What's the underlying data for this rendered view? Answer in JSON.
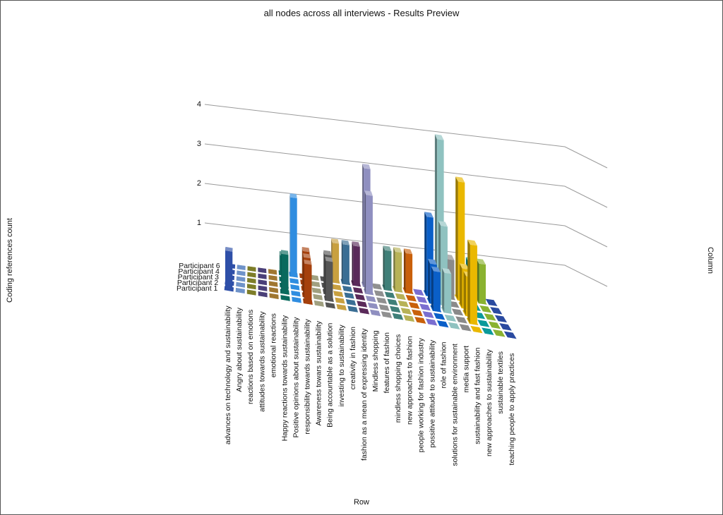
{
  "chart_data": {
    "type": "bar",
    "title": "all nodes across all interviews - Results Preview",
    "ylabel": "Coding references count",
    "xlabel": "Row",
    "zlabel": "Column",
    "ylim": [
      0,
      4
    ],
    "yticks": [
      "1",
      "2",
      "3",
      "4"
    ],
    "series": [
      {
        "name": "Participant 1"
      },
      {
        "name": "Participant 2"
      },
      {
        "name": "Participant 3"
      },
      {
        "name": "Participant 4"
      },
      {
        "name": "Participant 6"
      }
    ],
    "categories": [
      {
        "label": "advances on technology and sustainability",
        "color": "#2e4fa8",
        "values": [
          1,
          0,
          0,
          0,
          0
        ]
      },
      {
        "label": "Angry about sustainability",
        "color": "#6f93c9",
        "values": [
          0,
          0,
          0,
          0,
          0
        ]
      },
      {
        "label": "reactions based on emotions",
        "color": "#7d7d28",
        "values": [
          0,
          0,
          0,
          0,
          0
        ]
      },
      {
        "label": "attitudes towards sustainability",
        "color": "#4a3f78",
        "values": [
          0,
          0,
          0,
          0,
          0
        ]
      },
      {
        "label": "emotional reactions",
        "color": "#a07730",
        "values": [
          0,
          0,
          0,
          0,
          0
        ]
      },
      {
        "label": "Happy reactions towards sustainability",
        "color": "#0a6a5e",
        "values": [
          0,
          1,
          0,
          0,
          0.5
        ]
      },
      {
        "label": "Positive opinions about sustainability",
        "color": "#2f8de0",
        "values": [
          0,
          0,
          0,
          0,
          2
        ]
      },
      {
        "label": "responsibility towards sustainability",
        "color": "#a5400c",
        "values": [
          1,
          1,
          1,
          0,
          0
        ]
      },
      {
        "label": "Awareness towars sustainability",
        "color": "#a0a080",
        "values": [
          0,
          0,
          0,
          0,
          0
        ]
      },
      {
        "label": "Being accountable as a solution",
        "color": "#555555",
        "values": [
          0,
          1,
          1,
          0,
          0
        ]
      },
      {
        "label": "investing to sustainability",
        "color": "#c8a040",
        "values": [
          0,
          0,
          0,
          0,
          1
        ]
      },
      {
        "label": "creativity in fashion",
        "color": "#3a6e94",
        "values": [
          0,
          0,
          0,
          0,
          1
        ]
      },
      {
        "label": "fashion as a mean of expressing identity",
        "color": "#5a2a5a",
        "values": [
          0,
          0,
          0,
          0,
          1
        ]
      },
      {
        "label": "Mindless shopping",
        "color": "#8f8fc0",
        "values": [
          0,
          0,
          0,
          2.5,
          3
        ]
      },
      {
        "label": "features of fashion",
        "color": "#909090",
        "values": [
          0,
          0,
          0,
          0,
          0
        ]
      },
      {
        "label": "mindless shopping choices",
        "color": "#3f7f78",
        "values": [
          0,
          0,
          0,
          0,
          1
        ]
      },
      {
        "label": "new approaches to fashion",
        "color": "#b7b257",
        "values": [
          0,
          0,
          0,
          0,
          1
        ]
      },
      {
        "label": "people working for fashion industry",
        "color": "#c9600a",
        "values": [
          0,
          0,
          0,
          0,
          1
        ]
      },
      {
        "label": "possitive attitude to sustainability",
        "color": "#7a6ed0",
        "values": [
          0,
          0,
          0,
          0,
          0
        ]
      },
      {
        "label": "role of fashion",
        "color": "#0a5fc8",
        "values": [
          0,
          0,
          1,
          1,
          2
        ]
      },
      {
        "label": "solutions for sustainable environment",
        "color": "#8fc2c0",
        "values": [
          0,
          0,
          1,
          2,
          4
        ]
      },
      {
        "label": "media support",
        "color": "#8a8a8a",
        "values": [
          0,
          0,
          0,
          0,
          1
        ]
      },
      {
        "label": "sustainability and fast fashion",
        "color": "#eab800",
        "values": [
          0,
          2,
          1,
          1,
          3
        ]
      },
      {
        "label": "new approaches to sustainability",
        "color": "#0a9a9a",
        "values": [
          0,
          0,
          0,
          0,
          1
        ]
      },
      {
        "label": "sustainable textiles",
        "color": "#8ab230",
        "values": [
          0,
          0,
          0,
          0,
          1
        ]
      },
      {
        "label": "teaching people to apply practices",
        "color": "#2a4aa0",
        "values": [
          0,
          0,
          0,
          0,
          0
        ]
      }
    ],
    "grid": true,
    "legend": "none"
  }
}
